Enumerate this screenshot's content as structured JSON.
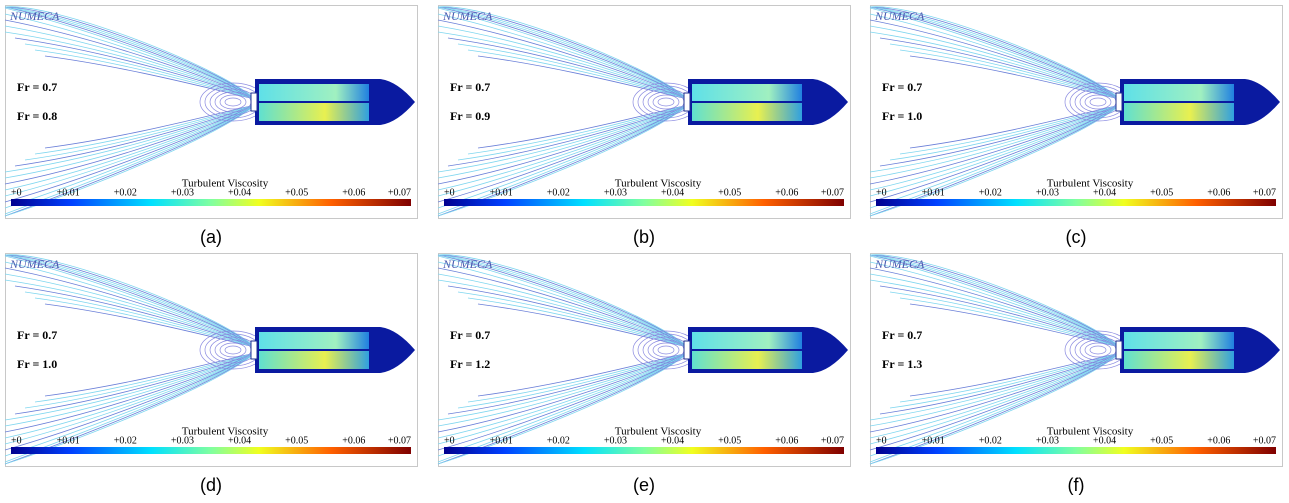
{
  "panels": [
    {
      "brand": "NUMECA",
      "labels": [
        "Fr = 0.7",
        "Fr = 0.8"
      ],
      "colorbar": {
        "title": "Turbulent Viscosity",
        "ticks": [
          "+0",
          "+0.01",
          "+0.02",
          "+0.03",
          "+0.04",
          "+0.05",
          "+0.06",
          "+0.07"
        ]
      },
      "caption": "(a)"
    },
    {
      "brand": "NUMECA",
      "labels": [
        "Fr = 0.7",
        "Fr = 0.9"
      ],
      "colorbar": {
        "title": "Turbulent Viscosity",
        "ticks": [
          "+0",
          "+0.01",
          "+0.02",
          "+0.03",
          "+0.04",
          "+0.05",
          "+0.06",
          "+0.07"
        ]
      },
      "caption": "(b)"
    },
    {
      "brand": "NUMECA",
      "labels": [
        "Fr = 0.7",
        "Fr = 1.0"
      ],
      "colorbar": {
        "title": "Turbulent Viscosity",
        "ticks": [
          "+0",
          "+0.01",
          "+0.02",
          "+0.03",
          "+0.04",
          "+0.05",
          "+0.06",
          "+0.07"
        ]
      },
      "caption": "(c)"
    },
    {
      "brand": "NUMECA",
      "labels": [
        "Fr = 0.7",
        "Fr = 1.0"
      ],
      "colorbar": {
        "title": "Turbulent Viscosity",
        "ticks": [
          "+0",
          "+0.01",
          "+0.02",
          "+0.03",
          "+0.04",
          "+0.05",
          "+0.06",
          "+0.07"
        ]
      },
      "caption": "(d)"
    },
    {
      "brand": "NUMECA",
      "labels": [
        "Fr = 0.7",
        "Fr = 1.2"
      ],
      "colorbar": {
        "title": "Turbulent Viscosity",
        "ticks": [
          "+0",
          "+0.01",
          "+0.02",
          "+0.03",
          "+0.04",
          "+0.05",
          "+0.06",
          "+0.07"
        ]
      },
      "caption": "(e)"
    },
    {
      "brand": "NUMECA",
      "labels": [
        "Fr = 0.7",
        "Fr = 1.3"
      ],
      "colorbar": {
        "title": "Turbulent Viscosity",
        "ticks": [
          "+0",
          "+0.01",
          "+0.02",
          "+0.03",
          "+0.04",
          "+0.05",
          "+0.06",
          "+0.07"
        ]
      },
      "caption": "(f)"
    }
  ]
}
